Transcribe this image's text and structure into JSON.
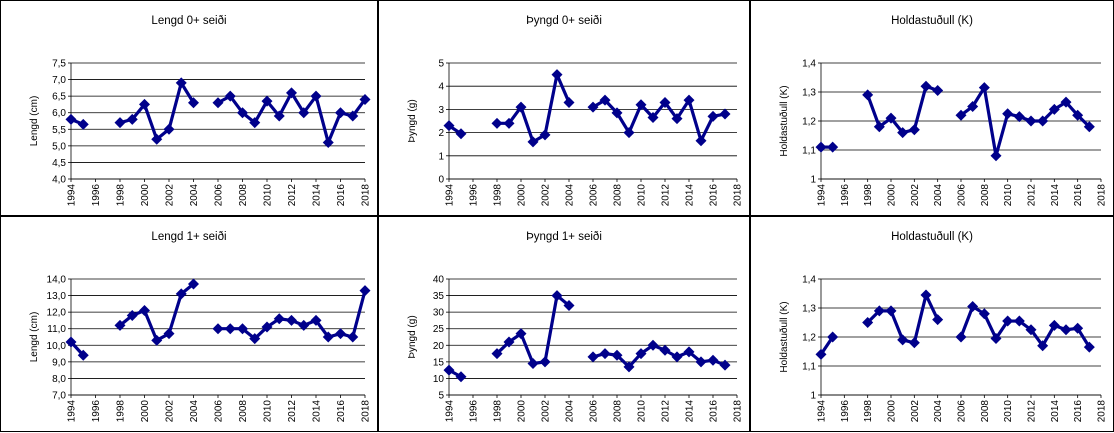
{
  "chart_data": [
    {
      "type": "line",
      "title": "Lengd 0+ seiði",
      "ylabel": "Lengd (cm)",
      "ylim": [
        4.0,
        7.5
      ],
      "ystep": 0.5,
      "ytick_decimals": 1,
      "xlim": [
        1994,
        2018
      ],
      "xticks": [
        "1994",
        "1996",
        "1998",
        "2000",
        "2002",
        "2004",
        "2006",
        "2008",
        "2010",
        "2012",
        "2014",
        "2016",
        "2018"
      ],
      "grid": "horizontal",
      "series": [
        {
          "x": [
            1994,
            1995,
            1998,
            1999,
            2000,
            2001,
            2002,
            2003,
            2004,
            2006,
            2007,
            2008,
            2009,
            2010,
            2011,
            2012,
            2013,
            2014,
            2015,
            2016,
            2017,
            2018
          ],
          "y": [
            5.8,
            5.65,
            5.7,
            5.8,
            6.25,
            5.2,
            5.5,
            6.9,
            6.3,
            6.3,
            6.5,
            6.0,
            5.7,
            6.35,
            5.9,
            6.6,
            6.0,
            6.5,
            5.1,
            6.0,
            5.9,
            6.4
          ]
        }
      ],
      "color": "#00008B"
    },
    {
      "type": "line",
      "title": "Þyngd 0+ seiði",
      "ylabel": "Þyngd (g)",
      "ylim": [
        0,
        5
      ],
      "ystep": 1,
      "ytick_decimals": 0,
      "xlim": [
        1994,
        2018
      ],
      "xticks": [
        "1994",
        "1996",
        "1998",
        "2000",
        "2002",
        "2004",
        "2006",
        "2008",
        "2010",
        "2012",
        "2014",
        "2016",
        "2018"
      ],
      "grid": "horizontal",
      "series": [
        {
          "x": [
            1994,
            1995,
            1998,
            1999,
            2000,
            2001,
            2002,
            2003,
            2004,
            2006,
            2007,
            2008,
            2009,
            2010,
            2011,
            2012,
            2013,
            2014,
            2015,
            2016,
            2017
          ],
          "y": [
            2.3,
            1.95,
            2.4,
            2.4,
            3.1,
            1.6,
            1.9,
            4.5,
            3.3,
            3.1,
            3.4,
            2.85,
            2.0,
            3.2,
            2.65,
            3.3,
            2.6,
            3.4,
            1.65,
            2.7,
            2.8
          ]
        }
      ],
      "color": "#00008B"
    },
    {
      "type": "line",
      "title": "Holdastuðull (K)",
      "ylabel": "Holdastuðull (K)",
      "ylim": [
        1.0,
        1.4
      ],
      "ystep": 0.1,
      "ytick_decimals": 1,
      "ytick_first_plain": true,
      "xlim": [
        1994,
        2018
      ],
      "xticks": [
        "1994",
        "1996",
        "1998",
        "2000",
        "2002",
        "2004",
        "2006",
        "2008",
        "2010",
        "2012",
        "2014",
        "2016",
        "2018"
      ],
      "grid": "horizontal",
      "series": [
        {
          "x": [
            1994,
            1995,
            1998,
            1999,
            2000,
            2001,
            2002,
            2003,
            2004,
            2006,
            2007,
            2008,
            2009,
            2010,
            2011,
            2012,
            2013,
            2014,
            2015,
            2016,
            2017
          ],
          "y": [
            1.11,
            1.11,
            1.29,
            1.18,
            1.21,
            1.16,
            1.17,
            1.32,
            1.305,
            1.22,
            1.25,
            1.315,
            1.08,
            1.225,
            1.215,
            1.2,
            1.2,
            1.24,
            1.265,
            1.22,
            1.18
          ]
        }
      ],
      "color": "#00008B"
    },
    {
      "type": "line",
      "title": "Lengd 1+ seiði",
      "ylabel": "Lengd (cm)",
      "ylim": [
        7.0,
        14.0
      ],
      "ystep": 1,
      "ytick_decimals": 1,
      "xlim": [
        1994,
        2018
      ],
      "xticks": [
        "1994",
        "1996",
        "1998",
        "2000",
        "2002",
        "2004",
        "2006",
        "2008",
        "2010",
        "2012",
        "2014",
        "2016",
        "2018"
      ],
      "grid": "horizontal",
      "series": [
        {
          "x": [
            1994,
            1995,
            1998,
            1999,
            2000,
            2001,
            2002,
            2003,
            2004,
            2006,
            2007,
            2008,
            2009,
            2010,
            2011,
            2012,
            2013,
            2014,
            2015,
            2016,
            2017,
            2018
          ],
          "y": [
            10.2,
            9.4,
            11.2,
            11.8,
            12.1,
            10.3,
            10.7,
            13.1,
            13.7,
            11.0,
            11.0,
            11.0,
            10.4,
            11.1,
            11.6,
            11.5,
            11.2,
            11.5,
            10.5,
            10.7,
            10.5,
            13.3
          ]
        }
      ],
      "color": "#00008B"
    },
    {
      "type": "line",
      "title": "Þyngd 1+ seiði",
      "ylabel": "Þyngd (g)",
      "ylim": [
        5,
        40
      ],
      "ystep": 5,
      "ytick_decimals": 0,
      "xlim": [
        1994,
        2018
      ],
      "xticks": [
        "1994",
        "1996",
        "1998",
        "2000",
        "2002",
        "2004",
        "2006",
        "2008",
        "2010",
        "2012",
        "2014",
        "2016",
        "2018"
      ],
      "grid": "horizontal",
      "series": [
        {
          "x": [
            1994,
            1995,
            1998,
            1999,
            2000,
            2001,
            2002,
            2003,
            2004,
            2006,
            2007,
            2008,
            2009,
            2010,
            2011,
            2012,
            2013,
            2014,
            2015,
            2016,
            2017
          ],
          "y": [
            12.5,
            10.5,
            17.5,
            21.0,
            23.5,
            14.5,
            15.0,
            35.0,
            32.0,
            16.5,
            17.5,
            17.0,
            13.5,
            17.5,
            20.0,
            18.5,
            16.5,
            18.0,
            15.0,
            15.5,
            14.0
          ]
        }
      ],
      "color": "#00008B"
    },
    {
      "type": "line",
      "title": "Holdastuðull (K)",
      "ylabel": "Holdastuðull (K)",
      "ylim": [
        1.0,
        1.4
      ],
      "ystep": 0.1,
      "ytick_decimals": 1,
      "ytick_first_plain": true,
      "xlim": [
        1994,
        2018
      ],
      "xticks": [
        "1994",
        "1996",
        "1998",
        "2000",
        "2002",
        "2004",
        "2006",
        "2008",
        "2010",
        "2012",
        "2014",
        "2016",
        "2018"
      ],
      "grid": "horizontal",
      "series": [
        {
          "x": [
            1994,
            1995,
            1998,
            1999,
            2000,
            2001,
            2002,
            2003,
            2004,
            2006,
            2007,
            2008,
            2009,
            2010,
            2011,
            2012,
            2013,
            2014,
            2015,
            2016,
            2017
          ],
          "y": [
            1.14,
            1.2,
            1.25,
            1.29,
            1.29,
            1.19,
            1.18,
            1.345,
            1.26,
            1.2,
            1.305,
            1.28,
            1.195,
            1.255,
            1.255,
            1.225,
            1.17,
            1.24,
            1.225,
            1.23,
            1.165
          ]
        }
      ],
      "color": "#00008B"
    }
  ]
}
